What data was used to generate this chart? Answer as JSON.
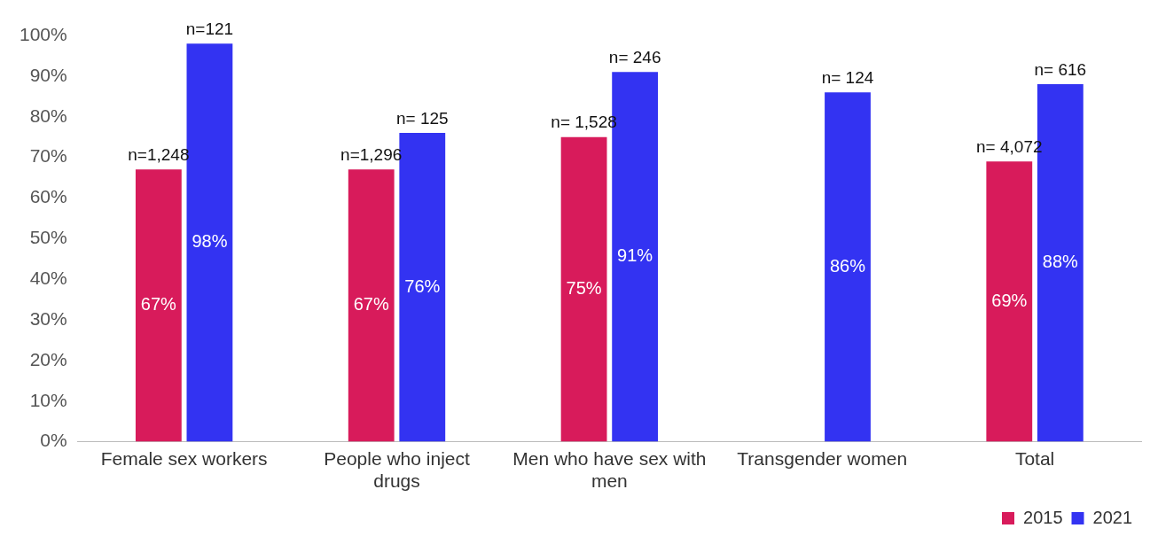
{
  "chart_data": {
    "type": "bar",
    "categories": [
      "Female sex workers",
      "People who inject drugs",
      "Men who have sex with men",
      "Transgender women",
      "Total"
    ],
    "series": [
      {
        "name": "2015",
        "color": "#d81b5b",
        "values": [
          67,
          67,
          75,
          null,
          69
        ],
        "value_labels": [
          "67%",
          "67%",
          "75%",
          null,
          "69%"
        ]
      },
      {
        "name": "2021",
        "color": "#3333f2",
        "values": [
          98,
          76,
          91,
          86,
          88
        ],
        "value_labels": [
          "98%",
          "76%",
          "91%",
          "86%",
          "88%"
        ]
      }
    ],
    "ylim": [
      0,
      100
    ],
    "yticks": [
      {
        "value": 0,
        "label": "0%"
      },
      {
        "value": 10,
        "label": "10%"
      },
      {
        "value": 20,
        "label": "20%"
      },
      {
        "value": 30,
        "label": "30%"
      },
      {
        "value": 40,
        "label": "40%"
      },
      {
        "value": 50,
        "label": "50%"
      },
      {
        "value": 60,
        "label": "60%"
      },
      {
        "value": 70,
        "label": "70%"
      },
      {
        "value": 80,
        "label": "80%"
      },
      {
        "value": 90,
        "label": "90%"
      },
      {
        "value": 100,
        "label": "100%"
      }
    ],
    "grid": false,
    "legend": "bottom right",
    "annotations": [
      {
        "text": "n=1,248",
        "x": "Female sex workers",
        "y": 67
      },
      {
        "text": "n=121",
        "x": "Female sex workers",
        "y": 98
      },
      {
        "text": "n=1,296",
        "x": "People who inject drugs",
        "y": 67
      },
      {
        "text": "n= 125",
        "x": "People who inject drugs",
        "y": 76
      },
      {
        "text": "n= 1,528",
        "x": "Men who have sex with men",
        "y": 75
      },
      {
        "text": "n= 246",
        "x": "Men who have sex with men",
        "y": 91
      },
      {
        "text": "n= 124",
        "x": "Transgender women",
        "y": 86
      },
      {
        "text": "n= 4,072",
        "x": "Total",
        "y": 69
      },
      {
        "text": "n= 616",
        "x": "Total",
        "y": 88
      }
    ]
  }
}
